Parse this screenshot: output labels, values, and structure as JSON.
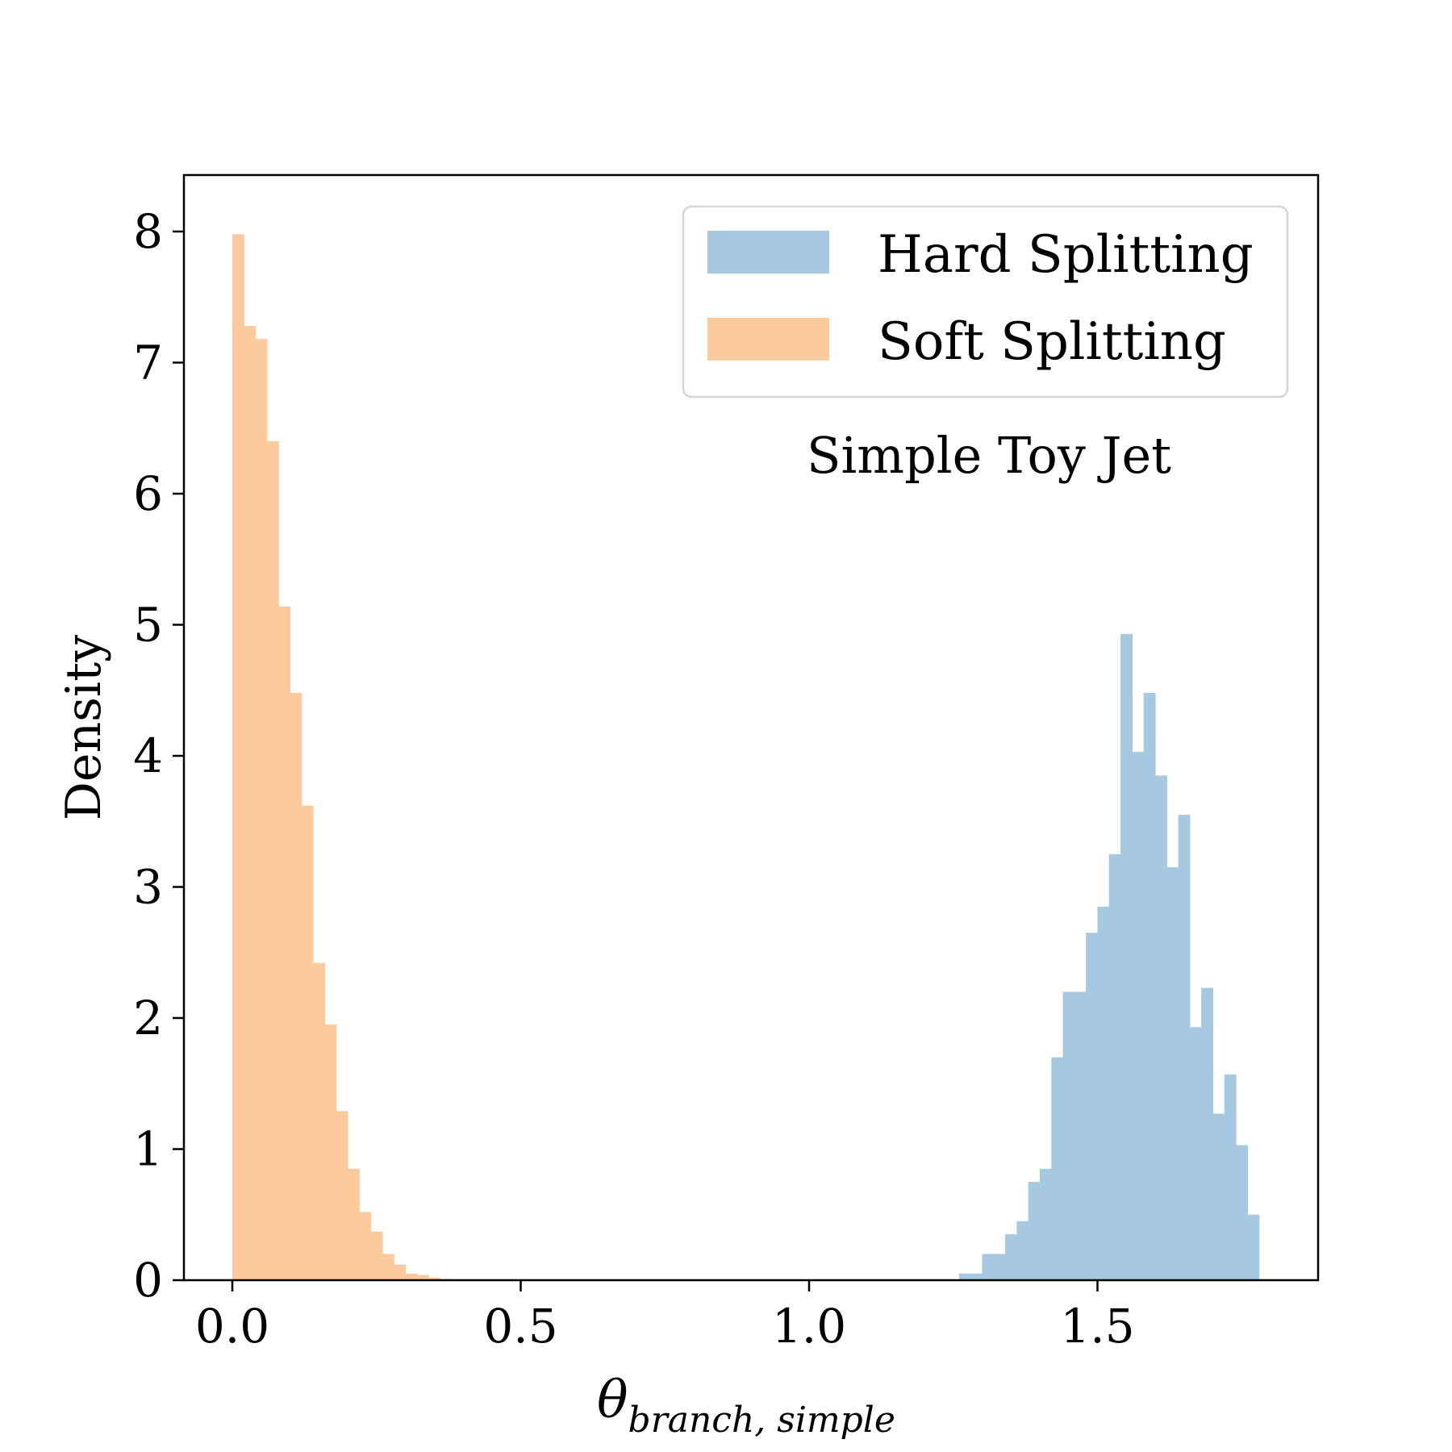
{
  "chart_data": {
    "type": "bar",
    "annotation": "Simple Toy Jet",
    "xlabel": {
      "main": "θ",
      "subscript": "branch, simple"
    },
    "ylabel": "Density",
    "xlim": [
      -0.1,
      1.86
    ],
    "ylim": [
      0,
      8.4
    ],
    "xticks": [
      0.0,
      0.5,
      1.0,
      1.5
    ],
    "xtick_labels": [
      "0.0",
      "0.5",
      "1.0",
      "1.5"
    ],
    "yticks": [
      0,
      1,
      2,
      3,
      4,
      5,
      6,
      7,
      8
    ],
    "ytick_labels": [
      "0",
      "1",
      "2",
      "3",
      "4",
      "5",
      "6",
      "7",
      "8"
    ],
    "grid": false,
    "legend_position": "top-right",
    "series": [
      {
        "name": "Hard Splitting",
        "color": "#a6c8e0",
        "bin_width": 0.02,
        "bin_starts": [
          1.26,
          1.28,
          1.3,
          1.32,
          1.34,
          1.36,
          1.38,
          1.4,
          1.42,
          1.44,
          1.46,
          1.48,
          1.5,
          1.52,
          1.54,
          1.56,
          1.58,
          1.6,
          1.62,
          1.64,
          1.66,
          1.68,
          1.7,
          1.72,
          1.74,
          1.76
        ],
        "values": [
          0.05,
          0.05,
          0.2,
          0.2,
          0.35,
          0.45,
          0.75,
          0.85,
          1.7,
          2.2,
          2.2,
          2.65,
          2.85,
          3.25,
          4.93,
          4.03,
          4.48,
          3.85,
          3.15,
          3.55,
          1.93,
          2.23,
          1.27,
          1.57,
          1.03,
          0.5
        ]
      },
      {
        "name": "Soft Splitting",
        "color": "#fdca9e",
        "bin_width": 0.02,
        "bin_starts": [
          0.0,
          0.02,
          0.04,
          0.06,
          0.08,
          0.1,
          0.12,
          0.14,
          0.16,
          0.18,
          0.2,
          0.22,
          0.24,
          0.26,
          0.28,
          0.3,
          0.32,
          0.34,
          0.36
        ],
        "values": [
          7.98,
          7.28,
          7.18,
          6.4,
          5.14,
          4.48,
          3.62,
          2.42,
          1.95,
          1.29,
          0.85,
          0.52,
          0.37,
          0.2,
          0.12,
          0.05,
          0.04,
          0.02,
          0.01
        ]
      }
    ]
  }
}
